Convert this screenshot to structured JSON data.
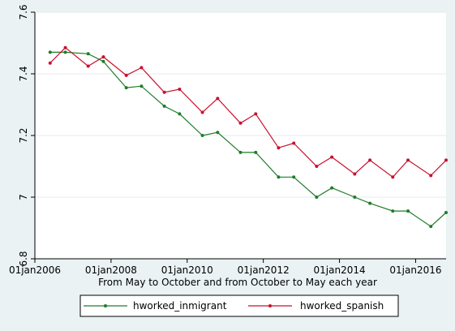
{
  "chart_data": {
    "type": "line",
    "title": "",
    "xlabel": "From May to October and from October to May each year",
    "ylabel": "",
    "x_ticks": [
      2006,
      2008,
      2010,
      2012,
      2014,
      2016
    ],
    "x_tick_labels": [
      "01jan2006",
      "01jan2008",
      "01jan2010",
      "01jan2012",
      "01jan2014",
      "01jan2016"
    ],
    "y_ticks": [
      6.8,
      7,
      7.2,
      7.4,
      7.6
    ],
    "y_tick_labels": [
      "6.8",
      "7",
      "7.2",
      "7.4",
      "7.6"
    ],
    "xlim": [
      2006,
      2016.8
    ],
    "ylim": [
      6.8,
      7.6
    ],
    "grid": "horizontal",
    "legend_position": "bottom",
    "x": [
      2006.4,
      2006.8,
      2007.4,
      2007.8,
      2008.4,
      2008.8,
      2009.4,
      2009.8,
      2010.4,
      2010.8,
      2011.4,
      2011.8,
      2012.4,
      2012.8,
      2013.4,
      2013.8,
      2014.4,
      2014.8,
      2015.4,
      2015.8,
      2016.4,
      2016.8
    ],
    "series": [
      {
        "name": "hworked_inmigrant",
        "color": "#1e7d2a",
        "values": [
          7.47,
          7.47,
          7.465,
          7.44,
          7.355,
          7.36,
          7.295,
          7.27,
          7.2,
          7.21,
          7.145,
          7.145,
          7.065,
          7.065,
          7.0,
          7.03,
          7.0,
          6.98,
          6.955,
          6.955,
          6.905,
          6.95
        ]
      },
      {
        "name": "hworked_spanish",
        "color": "#c8102e",
        "values": [
          7.435,
          7.485,
          7.425,
          7.455,
          7.395,
          7.42,
          7.34,
          7.35,
          7.275,
          7.32,
          7.24,
          7.27,
          7.16,
          7.175,
          7.1,
          7.13,
          7.075,
          7.12,
          7.065,
          7.12,
          7.07,
          7.12
        ]
      }
    ]
  }
}
